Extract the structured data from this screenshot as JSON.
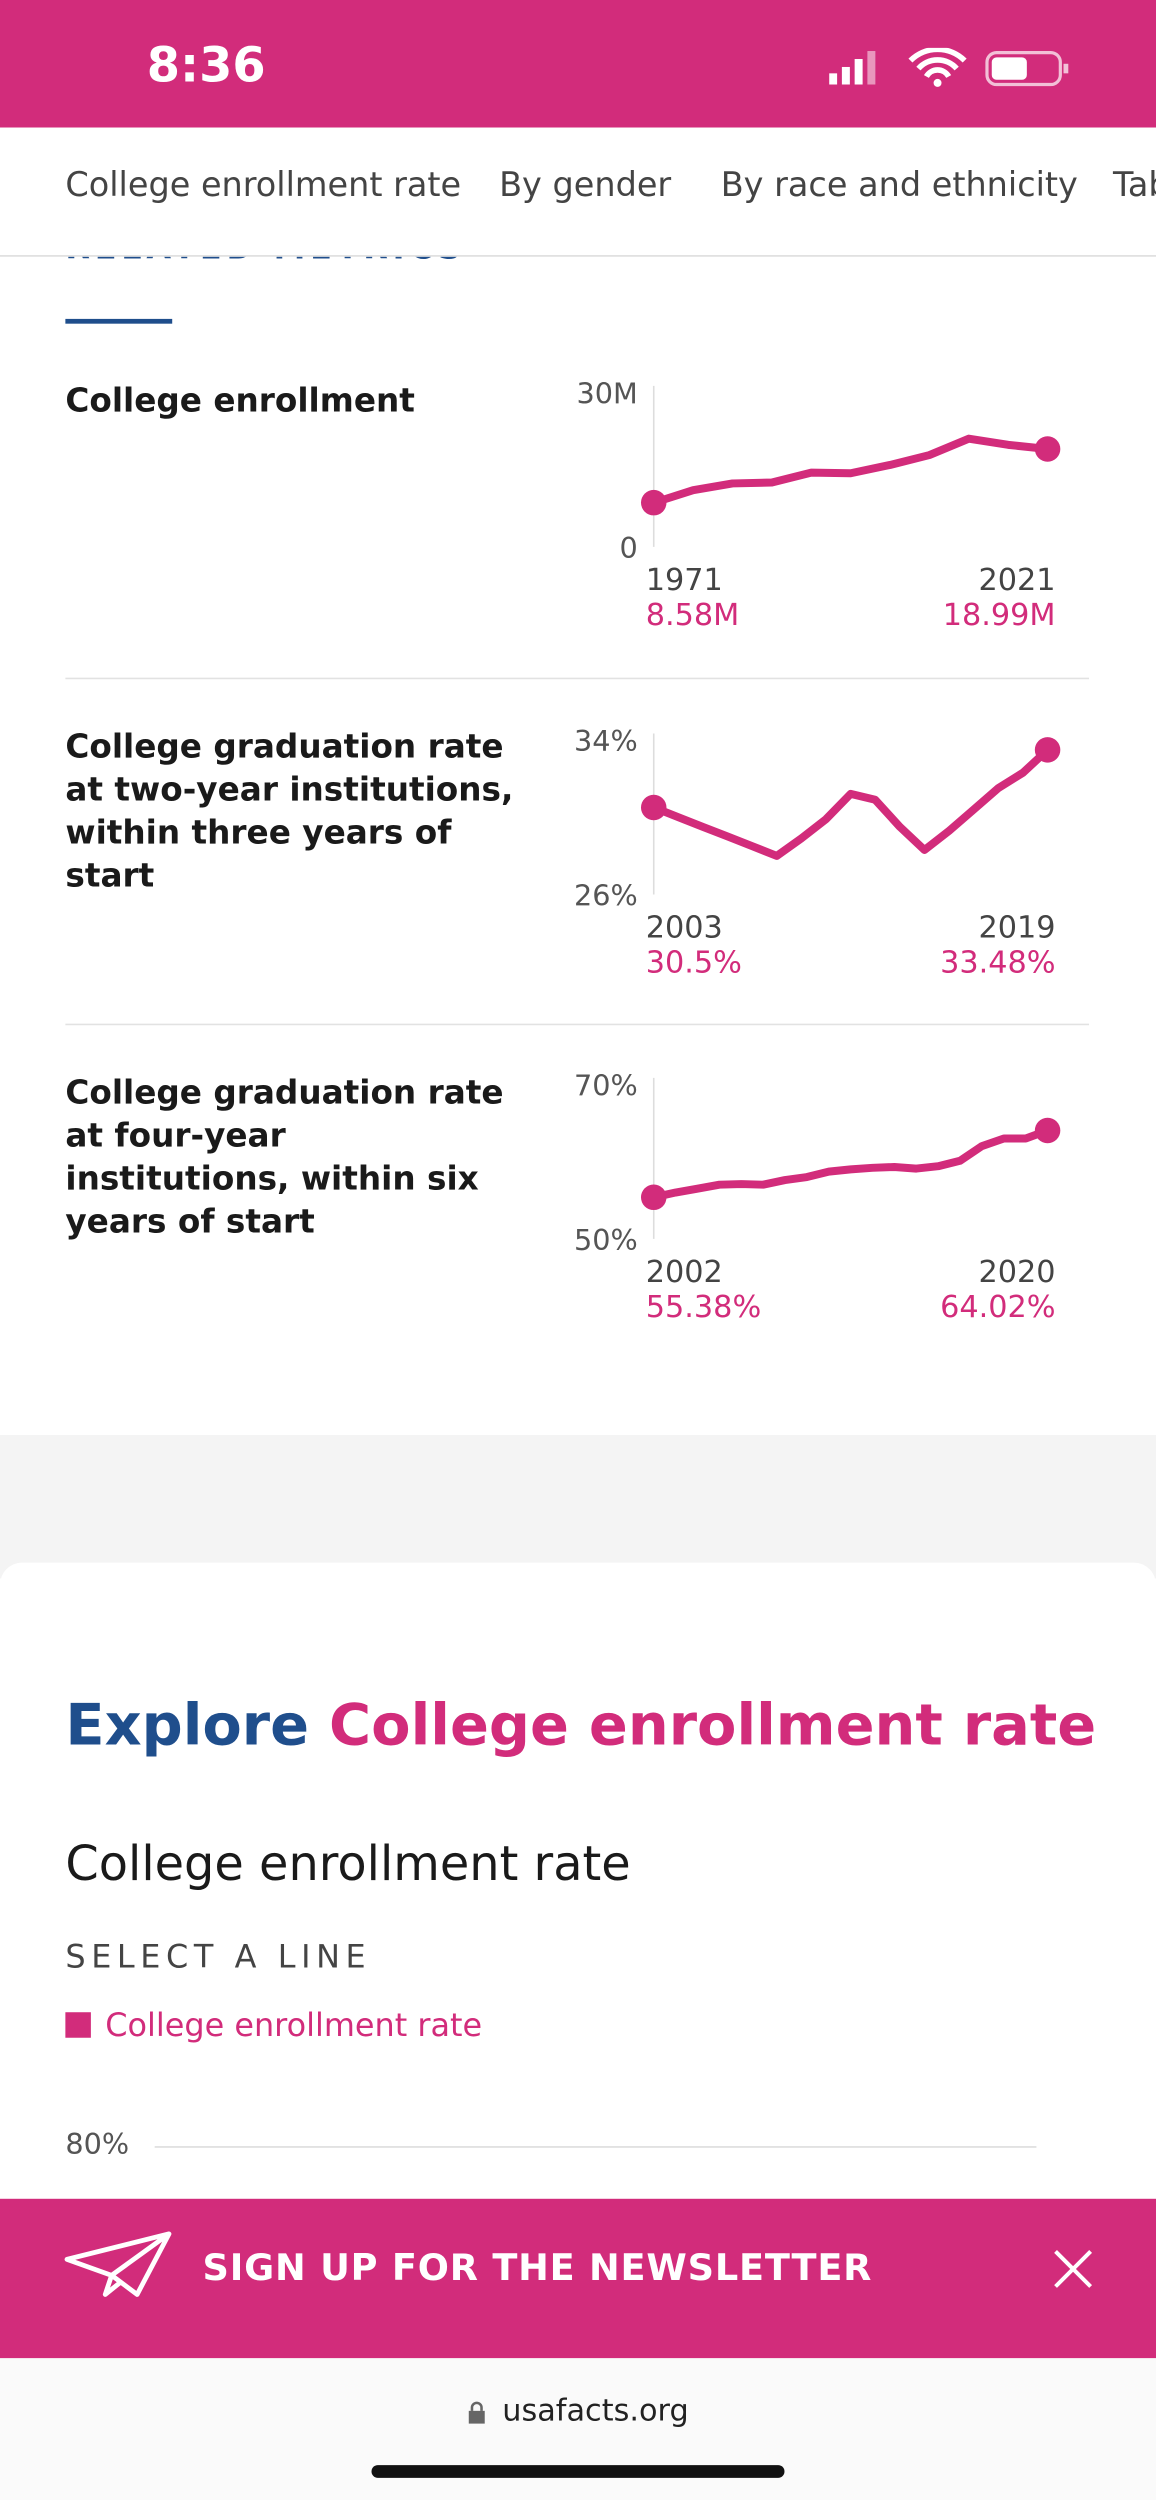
{
  "status_bar": {
    "time": "8:36"
  },
  "tabs": [
    "College enrollment rate",
    "By gender",
    "By race and ethnicity",
    "Tables"
  ],
  "related_metrics": {
    "heading": "RELATED METRICS",
    "metrics": [
      {
        "title": "College enrollment",
        "chart": {
          "type": "line",
          "color": "#d22c7b",
          "x": [
            1971,
            1976,
            1981,
            1986,
            1991,
            1996,
            2001,
            2006,
            2011,
            2016,
            2021
          ],
          "values": [
            8.58,
            11.0,
            12.3,
            12.5,
            14.4,
            14.3,
            15.9,
            17.8,
            21.0,
            19.8,
            18.99
          ],
          "value_labels": [
            "8.58M",
            null,
            null,
            null,
            null,
            null,
            null,
            null,
            null,
            null,
            "18.99M"
          ],
          "ylim": [
            0,
            30
          ],
          "yticks": [
            {
              "value": 0,
              "label": "0"
            },
            {
              "value": 30,
              "label": "30M"
            }
          ]
        }
      },
      {
        "title": "College graduation rate at two-year institutions, within three years of start",
        "chart": {
          "type": "line",
          "color": "#d22c7b",
          "x": [
            2003,
            2004,
            2005,
            2006,
            2007,
            2008,
            2009,
            2010,
            2011,
            2012,
            2013,
            2014,
            2015,
            2016,
            2017,
            2018,
            2019
          ],
          "values": [
            30.5,
            30.0,
            29.5,
            29.0,
            28.5,
            28.0,
            28.9,
            29.9,
            31.2,
            30.9,
            29.5,
            28.3,
            29.3,
            30.4,
            31.5,
            32.3,
            33.48
          ],
          "value_labels": [
            "30.5%",
            null,
            null,
            null,
            null,
            null,
            null,
            null,
            null,
            null,
            null,
            null,
            null,
            null,
            null,
            null,
            "33.48%"
          ],
          "ylim": [
            26,
            34
          ],
          "yticks": [
            {
              "value": 26,
              "label": "26%"
            },
            {
              "value": 34,
              "label": "34%"
            }
          ]
        }
      },
      {
        "title": "College graduation rate at four-year institutions, within six years of start",
        "chart": {
          "type": "line",
          "color": "#d22c7b",
          "x": [
            2002,
            2003,
            2004,
            2005,
            2006,
            2007,
            2008,
            2009,
            2010,
            2011,
            2012,
            2013,
            2014,
            2015,
            2016,
            2017,
            2018,
            2019,
            2020
          ],
          "values": [
            55.38,
            56.0,
            56.5,
            57.0,
            57.1,
            57.0,
            57.6,
            58.0,
            58.7,
            59.0,
            59.2,
            59.3,
            59.1,
            59.4,
            60.1,
            62.0,
            63.0,
            63.0,
            64.02
          ],
          "value_labels": [
            "55.38%",
            null,
            null,
            null,
            null,
            null,
            null,
            null,
            null,
            null,
            null,
            null,
            null,
            null,
            null,
            null,
            null,
            null,
            "64.02%"
          ],
          "ylim": [
            50,
            70
          ],
          "yticks": [
            {
              "value": 50,
              "label": "50%"
            },
            {
              "value": 70,
              "label": "70%"
            }
          ]
        }
      }
    ]
  },
  "explore": {
    "prefix": "Explore",
    "highlight": "College enrollment rate",
    "chart_title": "College enrollment rate",
    "select_label": "SELECT A LINE",
    "chart": {
      "type": "line",
      "series": [
        {
          "name": "College enrollment rate",
          "color": "#d22c7b"
        }
      ],
      "yticks": [
        {
          "value": 80,
          "label": "80%"
        }
      ]
    }
  },
  "banner": {
    "text": "SIGN UP FOR THE NEWSLETTER"
  },
  "browser": {
    "url": "usafacts.org"
  }
}
